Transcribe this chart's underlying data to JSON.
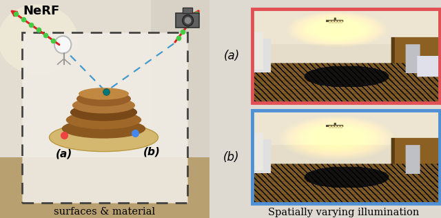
{
  "fig_width": 6.4,
  "fig_height": 3.16,
  "red_border_color": "#e05055",
  "blue_border_color": "#5090d5",
  "arrow_red": "#dd2222",
  "arrow_green_dot": "#44cc44",
  "arrow_blue_dashed": "#4499cc",
  "dot_teal": "#007777",
  "dot_red": "#ee4444",
  "dot_blue": "#4488ee",
  "nerf_label": "NeRF",
  "surfaces_label": "surfaces & material",
  "spatially_label": "Spatially varying illumination"
}
